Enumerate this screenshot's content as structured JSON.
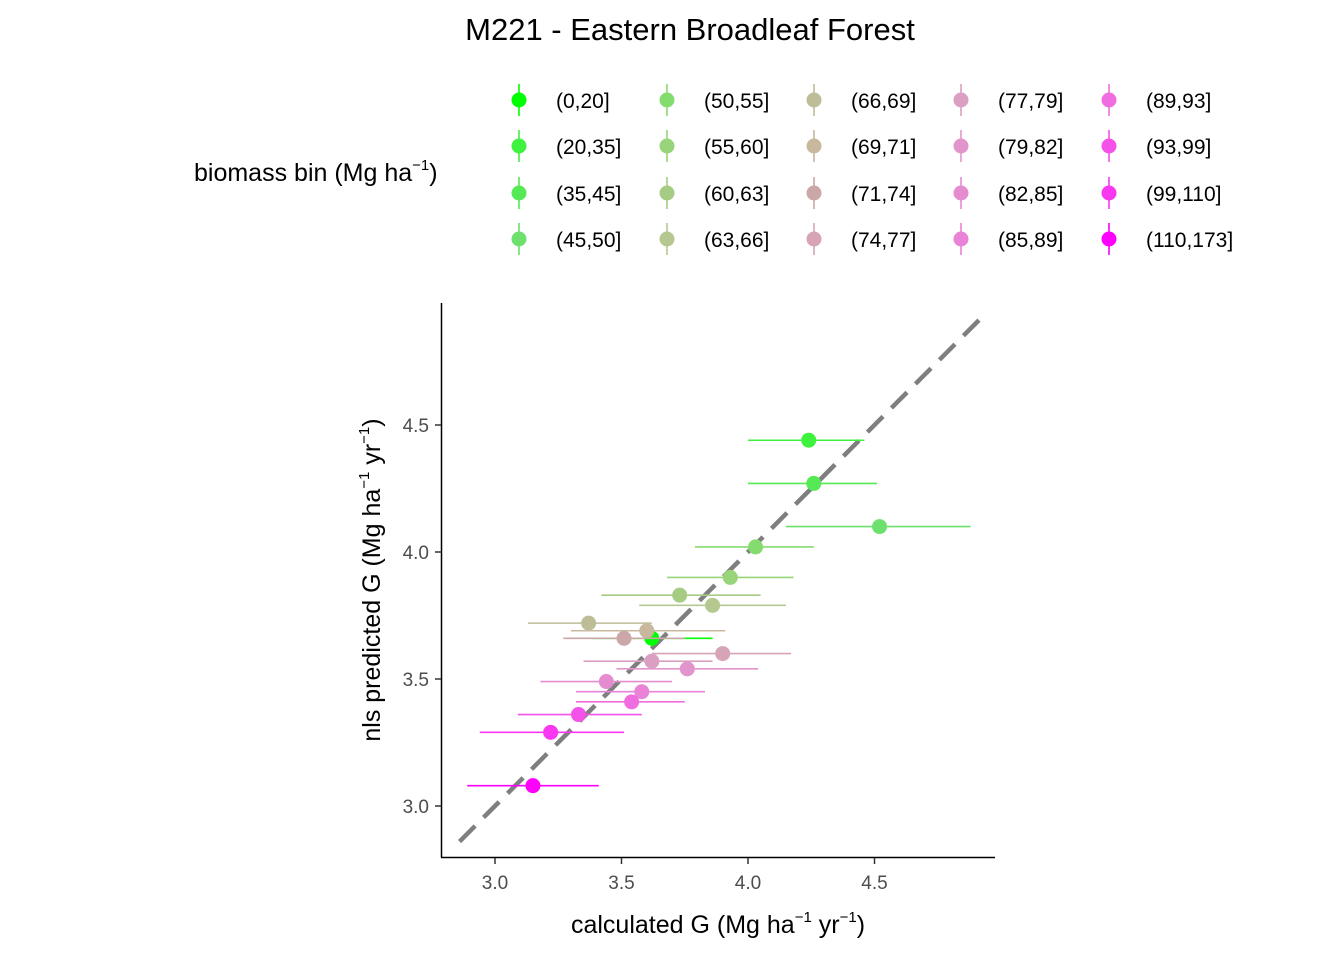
{
  "chart_data": {
    "type": "scatter",
    "title": "M221 - Eastern Broadleaf Forest",
    "xlabel": {
      "main": "calculated G (Mg ha",
      "sup1": "−1",
      "mid": " yr",
      "sup2": "−1",
      "end": ")"
    },
    "ylabel": {
      "main": "nls predicted G (Mg ha",
      "sup1": "−1",
      "mid": " yr",
      "sup2": "−1",
      "end": ")"
    },
    "legend": {
      "title": {
        "main": "biomass bin (Mg ha",
        "sup": "−1",
        "end": ")"
      },
      "placement": "top"
    },
    "xlim": [
      2.8,
      4.98
    ],
    "ylim": [
      2.8,
      4.98
    ],
    "x_ticks": [
      "3.0",
      "3.5",
      "4.0",
      "4.5"
    ],
    "y_ticks": [
      "3.0",
      "3.5",
      "4.0",
      "4.5"
    ],
    "reference_line": {
      "type": "1:1",
      "style": "dashed",
      "color": "#7f7f7f"
    },
    "series": [
      {
        "name": "(0,20]",
        "color": "#00ff00",
        "x": 3.62,
        "y": 3.66,
        "xmin": 3.38,
        "xmax": 3.86
      },
      {
        "name": "(20,35]",
        "color": "#3ef23e",
        "x": 4.24,
        "y": 4.44,
        "xmin": 4.0,
        "xmax": 4.46
      },
      {
        "name": "(35,45]",
        "color": "#55e955",
        "x": 4.26,
        "y": 4.27,
        "xmin": 4.0,
        "xmax": 4.51
      },
      {
        "name": "(45,50]",
        "color": "#6ee06e",
        "x": 4.52,
        "y": 4.1,
        "xmin": 4.15,
        "xmax": 4.88
      },
      {
        "name": "(50,55]",
        "color": "#85dc6e",
        "x": 4.03,
        "y": 4.02,
        "xmin": 3.79,
        "xmax": 4.26
      },
      {
        "name": "(55,60]",
        "color": "#98d47a",
        "x": 3.93,
        "y": 3.9,
        "xmin": 3.68,
        "xmax": 4.18
      },
      {
        "name": "(60,63]",
        "color": "#a6cc84",
        "x": 3.73,
        "y": 3.83,
        "xmin": 3.42,
        "xmax": 4.05
      },
      {
        "name": "(63,66]",
        "color": "#b4c890",
        "x": 3.86,
        "y": 3.79,
        "xmin": 3.57,
        "xmax": 4.15
      },
      {
        "name": "(66,69]",
        "color": "#bdbd98",
        "x": 3.37,
        "y": 3.72,
        "xmin": 3.13,
        "xmax": 3.62
      },
      {
        "name": "(69,71]",
        "color": "#c8b89e",
        "x": 3.6,
        "y": 3.69,
        "xmin": 3.3,
        "xmax": 3.91
      },
      {
        "name": "(71,74]",
        "color": "#cba7a7",
        "x": 3.51,
        "y": 3.66,
        "xmin": 3.27,
        "xmax": 3.75
      },
      {
        "name": "(74,77]",
        "color": "#d6a4b6",
        "x": 3.9,
        "y": 3.6,
        "xmin": 3.62,
        "xmax": 4.17
      },
      {
        "name": "(77,79]",
        "color": "#dba0c1",
        "x": 3.62,
        "y": 3.57,
        "xmin": 3.35,
        "xmax": 3.86
      },
      {
        "name": "(79,82]",
        "color": "#e295cc",
        "x": 3.76,
        "y": 3.54,
        "xmin": 3.48,
        "xmax": 4.04
      },
      {
        "name": "(82,85]",
        "color": "#e58bd0",
        "x": 3.44,
        "y": 3.49,
        "xmin": 3.18,
        "xmax": 3.7
      },
      {
        "name": "(85,89]",
        "color": "#ea82d8",
        "x": 3.58,
        "y": 3.45,
        "xmin": 3.32,
        "xmax": 3.83
      },
      {
        "name": "(89,93]",
        "color": "#ef6ddf",
        "x": 3.54,
        "y": 3.41,
        "xmin": 3.32,
        "xmax": 3.75
      },
      {
        "name": "(93,99]",
        "color": "#f452e8",
        "x": 3.33,
        "y": 3.36,
        "xmin": 3.09,
        "xmax": 3.58
      },
      {
        "name": "(99,110]",
        "color": "#f838f0",
        "x": 3.22,
        "y": 3.29,
        "xmin": 2.94,
        "xmax": 3.51
      },
      {
        "name": "(110,173]",
        "color": "#ff00ff",
        "x": 3.15,
        "y": 3.08,
        "xmin": 2.89,
        "xmax": 3.41
      }
    ]
  }
}
